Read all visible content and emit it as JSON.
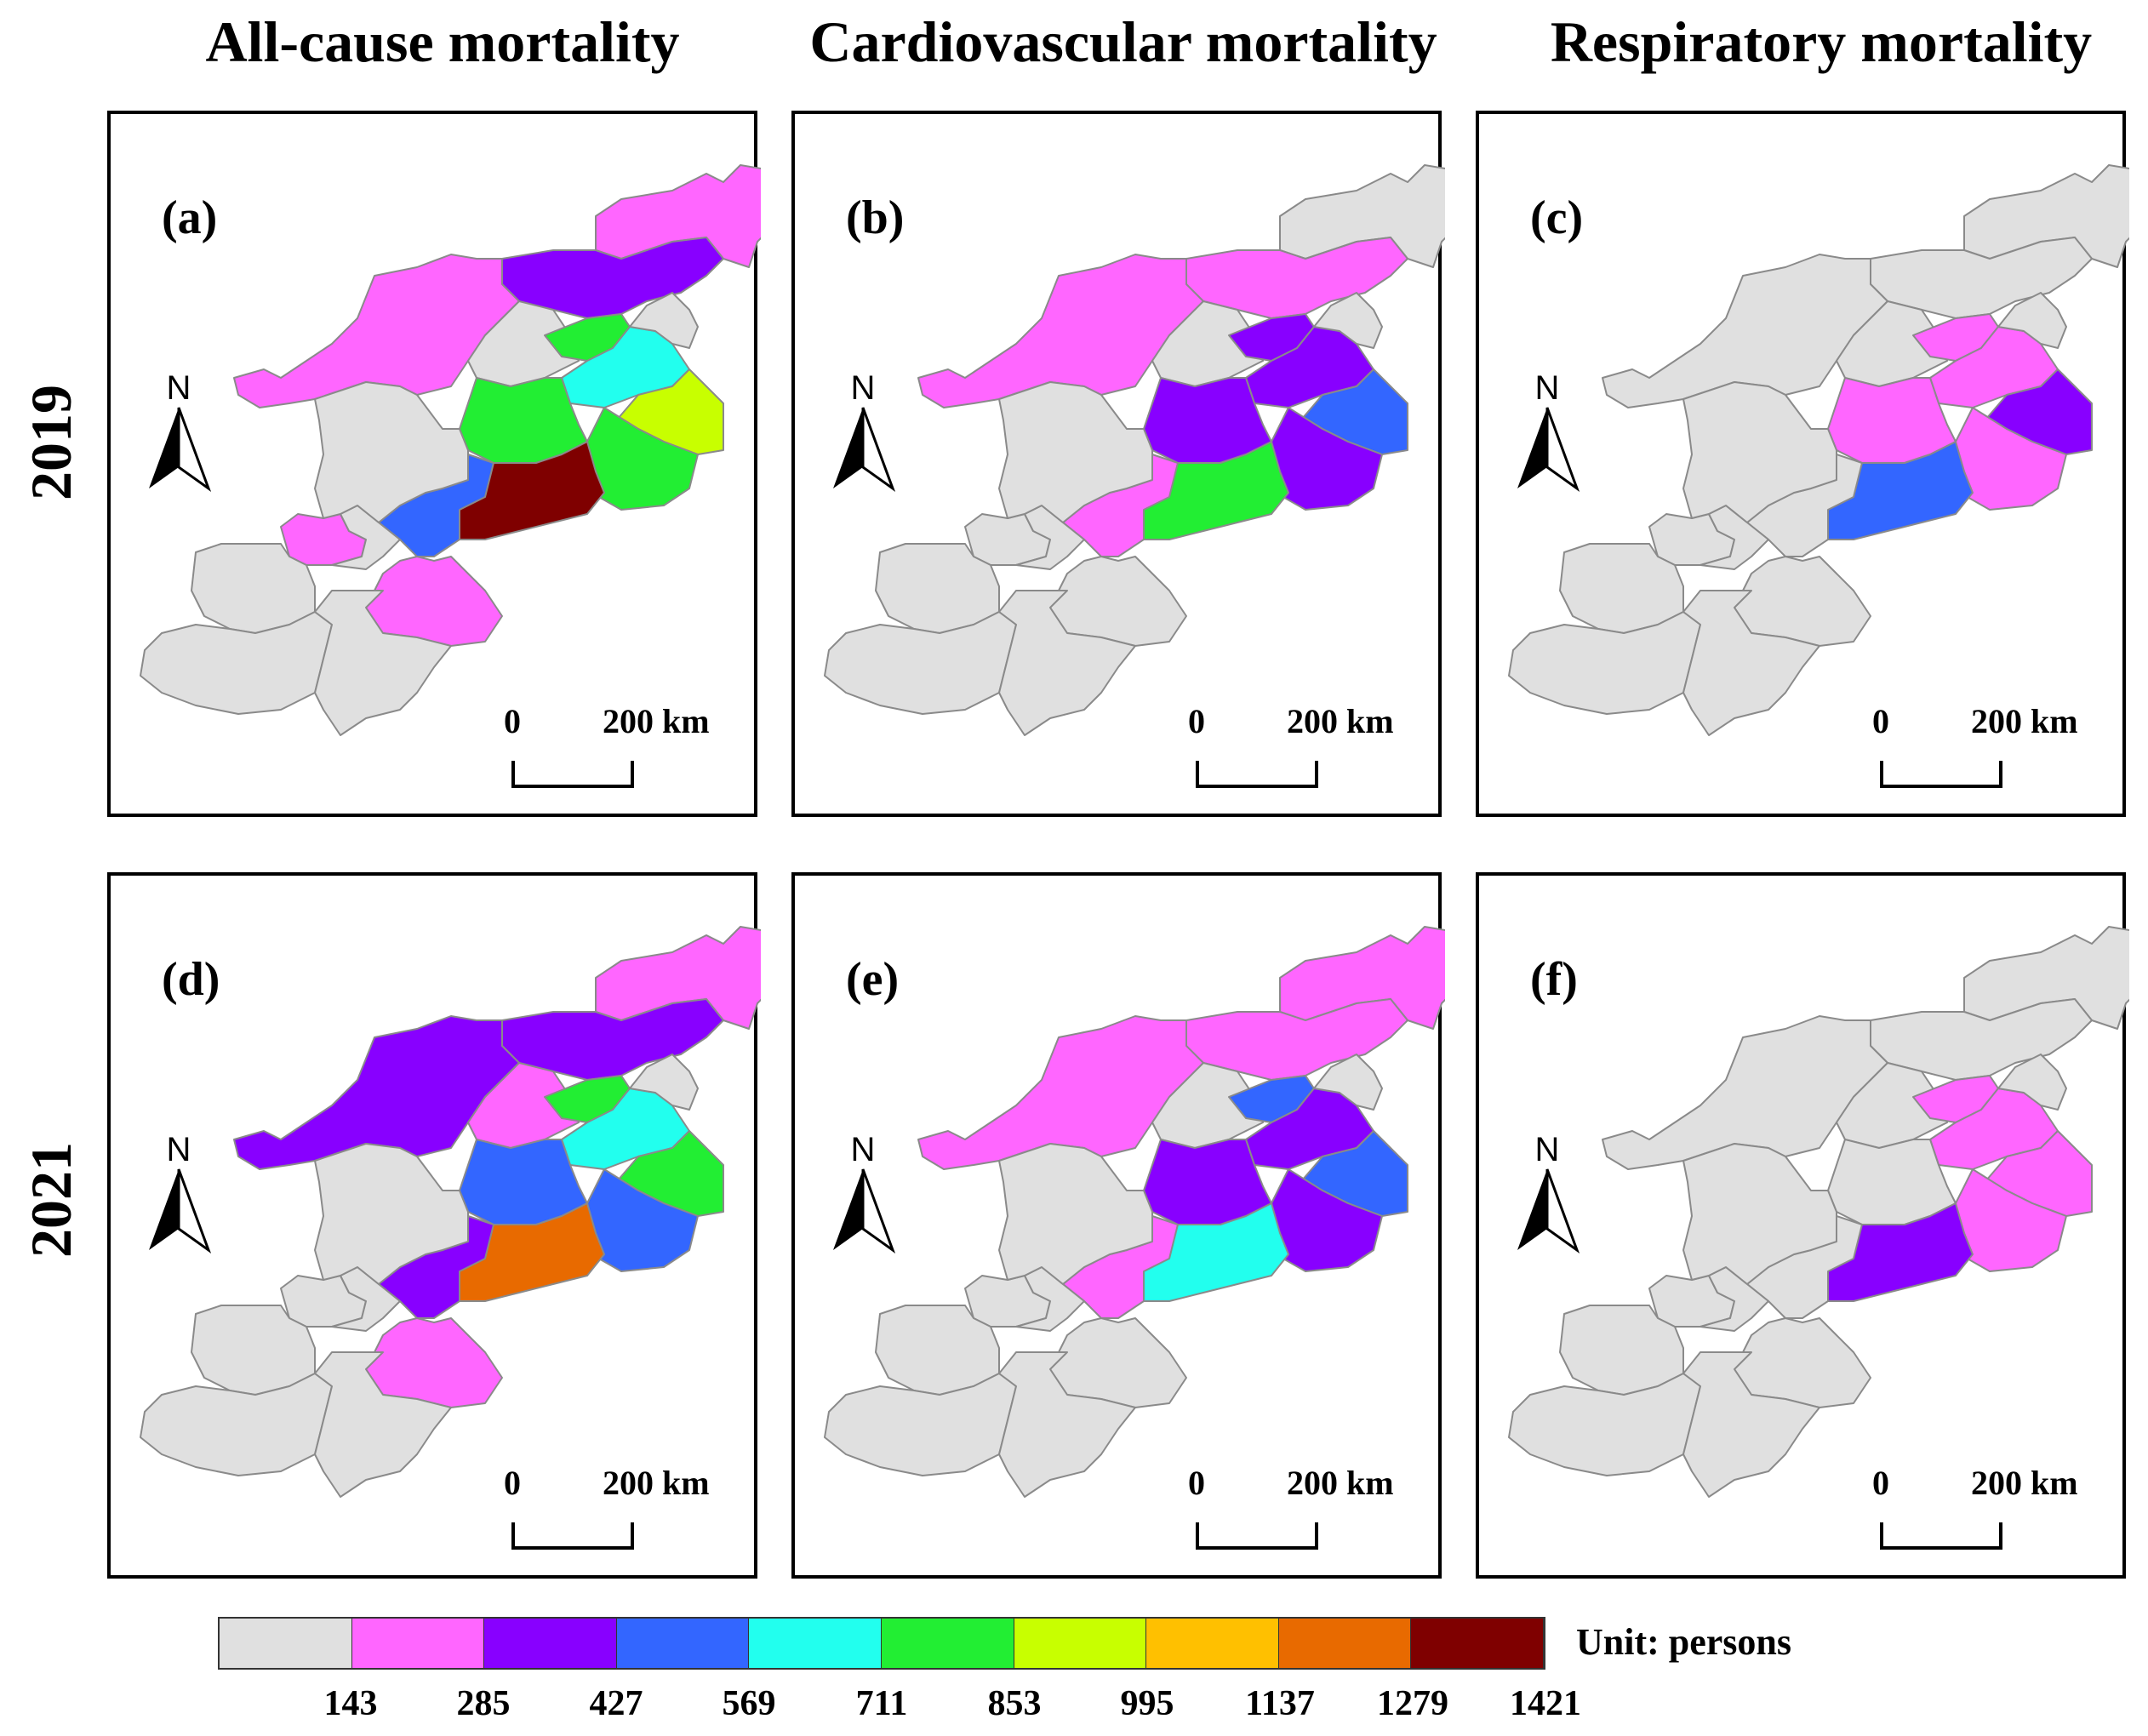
{
  "columns": [
    "All-cause mortality",
    "Cardiovascular mortality",
    "Respiratory mortality"
  ],
  "rows": [
    "2019",
    "2021"
  ],
  "north_label": "N",
  "scale": {
    "start": "0",
    "end": "200 km"
  },
  "legend": {
    "unit": "Unit: persons",
    "ticks": [
      "143",
      "285",
      "427",
      "569",
      "711",
      "853",
      "995",
      "1137",
      "1279",
      "1421"
    ],
    "colors": [
      "#e0e0e0",
      "#ff66ff",
      "#8800ff",
      "#3366ff",
      "#22ffee",
      "#22ee33",
      "#c8ff00",
      "#ffc000",
      "#e86a00",
      "#7f0000"
    ]
  },
  "panels": [
    {
      "label": "(a)",
      "classes": {
        "n1": 1,
        "n2": 2,
        "n3": 1,
        "n4": 0,
        "n5": 5,
        "n6": 4,
        "n7": 6,
        "n8": 0,
        "c1": 5,
        "c2": 5,
        "c3": 9,
        "c4": 3,
        "c5": 1,
        "s1": 1,
        "s2": 0,
        "s3": 0,
        "s4": 0,
        "s5": 0,
        "w1": 0
      }
    },
    {
      "label": "(b)",
      "classes": {
        "n1": 0,
        "n2": 1,
        "n3": 1,
        "n4": 0,
        "n5": 2,
        "n6": 2,
        "n7": 3,
        "n8": 0,
        "c1": 2,
        "c2": 2,
        "c3": 5,
        "c4": 1,
        "c5": 0,
        "s1": 0,
        "s2": 0,
        "s3": 0,
        "s4": 0,
        "s5": 0,
        "w1": 0
      }
    },
    {
      "label": "(c)",
      "classes": {
        "n1": 0,
        "n2": 0,
        "n3": 0,
        "n4": 0,
        "n5": 1,
        "n6": 1,
        "n7": 2,
        "n8": 0,
        "c1": 1,
        "c2": 1,
        "c3": 3,
        "c4": 0,
        "c5": 0,
        "s1": 0,
        "s2": 0,
        "s3": 0,
        "s4": 0,
        "s5": 0,
        "w1": 0
      }
    },
    {
      "label": "(d)",
      "classes": {
        "n1": 1,
        "n2": 2,
        "n3": 2,
        "n4": 1,
        "n5": 5,
        "n6": 4,
        "n7": 5,
        "n8": 0,
        "c1": 3,
        "c2": 3,
        "c3": 8,
        "c4": 2,
        "c5": 1,
        "s1": 0,
        "s2": 0,
        "s3": 0,
        "s4": 0,
        "s5": 0,
        "w1": 0
      }
    },
    {
      "label": "(e)",
      "classes": {
        "n1": 1,
        "n2": 1,
        "n3": 1,
        "n4": 0,
        "n5": 3,
        "n6": 2,
        "n7": 3,
        "n8": 0,
        "c1": 2,
        "c2": 2,
        "c3": 4,
        "c4": 1,
        "c5": 0,
        "s1": 0,
        "s2": 0,
        "s3": 0,
        "s4": 0,
        "s5": 0,
        "w1": 0
      }
    },
    {
      "label": "(f)",
      "classes": {
        "n1": 0,
        "n2": 0,
        "n3": 0,
        "n4": 0,
        "n5": 1,
        "n6": 1,
        "n7": 1,
        "n8": 0,
        "c1": 0,
        "c2": 1,
        "c3": 2,
        "c4": 0,
        "c5": 0,
        "s1": 0,
        "s2": 0,
        "s3": 0,
        "s4": 0,
        "s5": 0,
        "w1": 0
      }
    }
  ]
}
